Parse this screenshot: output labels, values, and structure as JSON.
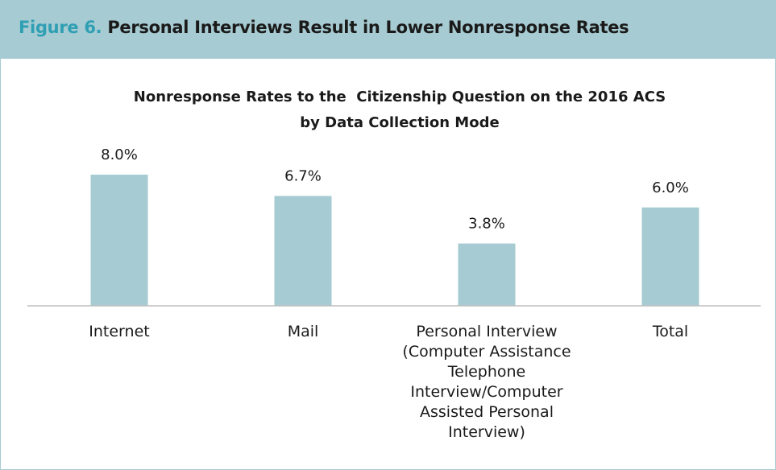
{
  "figure": {
    "label": "Figure 6.",
    "title": "Personal Interviews Result in Lower Nonresponse Rates"
  },
  "colors": {
    "header_bg": "#a7cbd2",
    "label_accent": "#2f9fb3",
    "bar": "#a7cbd2",
    "axis": "#bfbfbf"
  },
  "chart_data": {
    "type": "bar",
    "title": "Nonresponse Rates to the  Citizenship Question on the 2016 ACS",
    "subtitle": "by Data Collection Mode",
    "categories": [
      "Internet",
      "Mail",
      "Personal Interview (Computer Assistance Telephone Interview/Computer Assisted Personal Interview)",
      "Total"
    ],
    "category_lines": [
      [
        "Internet"
      ],
      [
        "Mail"
      ],
      [
        "Personal Interview",
        "(Computer Assistance",
        "Telephone",
        "Interview/Computer",
        "Assisted Personal",
        "Interview)"
      ],
      [
        "Total"
      ]
    ],
    "values": [
      8.0,
      6.7,
      3.8,
      6.0
    ],
    "data_labels": [
      "8.0%",
      "6.7%",
      "3.8%",
      "6.0%"
    ],
    "unit": "%",
    "ylim": [
      0,
      8.0
    ],
    "grid": false,
    "legend": "none"
  }
}
